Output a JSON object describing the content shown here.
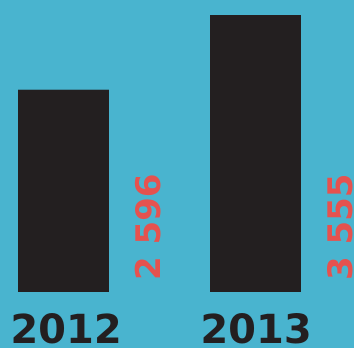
{
  "chart_data": {
    "type": "bar",
    "categories": [
      "2012",
      "2013"
    ],
    "values": [
      2596,
      3555
    ],
    "value_labels": [
      "2 596",
      "3 555"
    ],
    "ylim": [
      0,
      3555
    ],
    "grid": false,
    "legend": "none"
  },
  "colors": {
    "background": "#49b4cf",
    "bar": "#231f20",
    "value_label": "#e5524f",
    "tick_label": "#231f20"
  }
}
